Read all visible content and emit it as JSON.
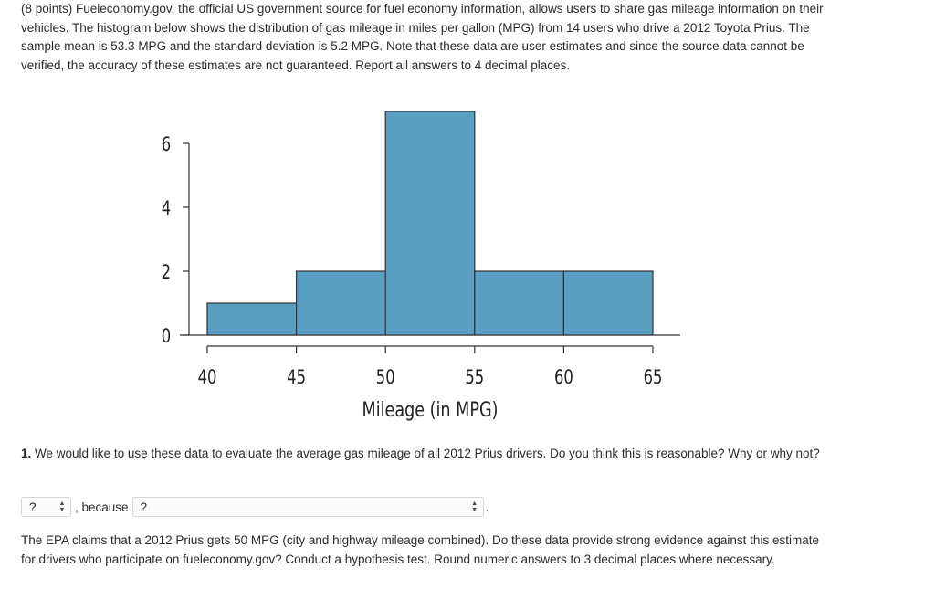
{
  "intro_text": "(8 points) Fueleconomy.gov, the official US government source for fuel economy information, allows users to share gas mileage information on their vehicles. The histogram below shows the distribution of gas mileage in miles per gallon (MPG) from 14 users who drive a 2012 Toyota Prius. The sample mean is 53.3 MPG and the standard deviation is 5.2 MPG. Note that these data are user estimates and since the source data cannot be verified, the accuracy of these estimates are not guaranteed. Report all answers to 4 decimal places.",
  "chart_data": {
    "type": "bar",
    "bins": [
      [
        40,
        45
      ],
      [
        45,
        50
      ],
      [
        50,
        55
      ],
      [
        55,
        60
      ],
      [
        60,
        65
      ]
    ],
    "values": [
      1,
      2,
      7,
      2,
      2
    ],
    "xlabel": "Mileage (in MPG)",
    "ylabel": "",
    "xticks": [
      40,
      45,
      50,
      55,
      60,
      65
    ],
    "yticks": [
      0,
      2,
      4,
      6
    ],
    "ylim": [
      0,
      7
    ],
    "grid": false,
    "bar_color": "#5a9ec2"
  },
  "question1": {
    "number": "1.",
    "text": "We would like to use these data to evaluate the average gas mileage of all 2012 Prius drivers. Do you think this is reasonable? Why or why not?",
    "select1_value": "?",
    "separator": ", because",
    "select2_value": "?",
    "end_punct": "."
  },
  "question2_text": "The EPA claims that a 2012 Prius gets 50 MPG (city and highway mileage combined). Do these data provide strong evidence against this estimate for drivers who participate on fueleconomy.gov? Conduct a hypothesis test. Round numeric answers to 3 decimal places where necessary."
}
